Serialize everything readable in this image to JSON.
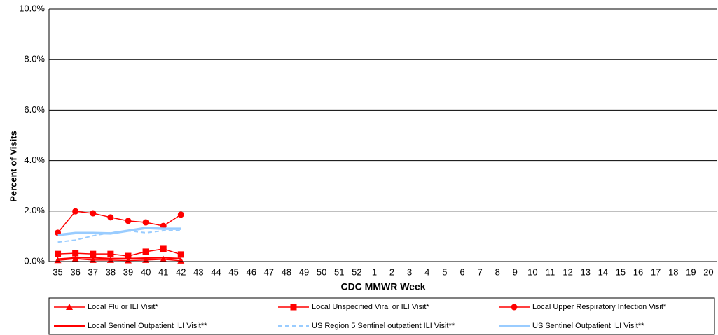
{
  "chart_data": {
    "type": "line",
    "y_label": "Percent of Visits",
    "x_label": "CDC MMWR Week",
    "categories": [
      "35",
      "36",
      "37",
      "38",
      "39",
      "40",
      "41",
      "42",
      "43",
      "44",
      "45",
      "46",
      "47",
      "48",
      "49",
      "50",
      "51",
      "52",
      "1",
      "2",
      "3",
      "4",
      "5",
      "6",
      "7",
      "8",
      "9",
      "10",
      "11",
      "12",
      "13",
      "14",
      "15",
      "16",
      "17",
      "18",
      "19",
      "20"
    ],
    "ylim": [
      0,
      10
    ],
    "yticks": [
      {
        "value": 0,
        "label": "0.0%"
      },
      {
        "value": 2,
        "label": "2.0%"
      },
      {
        "value": 4,
        "label": "4.0%"
      },
      {
        "value": 6,
        "label": "6.0%"
      },
      {
        "value": 8,
        "label": "8.0%"
      },
      {
        "value": 10,
        "label": "10.0%"
      }
    ],
    "grid": true,
    "legend": "bottom",
    "series": [
      {
        "name": "Local Flu or ILI Visit*",
        "color": "#ff0000",
        "marker": "triangle",
        "dash": false,
        "width": 1.5,
        "values": [
          0.05,
          0.11,
          0.06,
          0.06,
          0.04,
          0.06,
          0.09,
          0.03,
          null,
          null,
          null,
          null,
          null,
          null,
          null,
          null,
          null,
          null,
          null,
          null,
          null,
          null,
          null,
          null,
          null,
          null,
          null,
          null,
          null,
          null,
          null,
          null,
          null,
          null,
          null,
          null,
          null,
          null
        ]
      },
      {
        "name": "Local Unspecified Viral or ILI Visit*",
        "color": "#ff0000",
        "marker": "square",
        "dash": false,
        "width": 1.5,
        "values": [
          0.3,
          0.33,
          0.3,
          0.3,
          0.22,
          0.39,
          0.5,
          0.28,
          null,
          null,
          null,
          null,
          null,
          null,
          null,
          null,
          null,
          null,
          null,
          null,
          null,
          null,
          null,
          null,
          null,
          null,
          null,
          null,
          null,
          null,
          null,
          null,
          null,
          null,
          null,
          null,
          null,
          null
        ]
      },
      {
        "name": "Local Upper Respiratory Infection Visit*",
        "color": "#ff0000",
        "marker": "circle",
        "dash": false,
        "width": 1.5,
        "values": [
          1.14,
          1.99,
          1.91,
          1.75,
          1.61,
          1.55,
          1.41,
          1.86,
          null,
          null,
          null,
          null,
          null,
          null,
          null,
          null,
          null,
          null,
          null,
          null,
          null,
          null,
          null,
          null,
          null,
          null,
          null,
          null,
          null,
          null,
          null,
          null,
          null,
          null,
          null,
          null,
          null,
          null
        ]
      },
      {
        "name": "Local Sentinel Outpatient ILI Visit**",
        "color": "#ff0000",
        "marker": null,
        "dash": false,
        "width": 2,
        "values": [
          0.1,
          0.15,
          0.15,
          0.12,
          0.12,
          0.14,
          0.15,
          0.12,
          null,
          null,
          null,
          null,
          null,
          null,
          null,
          null,
          null,
          null,
          null,
          null,
          null,
          null,
          null,
          null,
          null,
          null,
          null,
          null,
          null,
          null,
          null,
          null,
          null,
          null,
          null,
          null,
          null,
          null
        ]
      },
      {
        "name": "US Region 5 Sentinel outpatient ILI Visit**",
        "color": "#99ccff",
        "marker": null,
        "dash": true,
        "width": 2,
        "values": [
          0.77,
          0.85,
          1.02,
          1.14,
          1.22,
          1.14,
          1.22,
          1.22,
          null,
          null,
          null,
          null,
          null,
          null,
          null,
          null,
          null,
          null,
          null,
          null,
          null,
          null,
          null,
          null,
          null,
          null,
          null,
          null,
          null,
          null,
          null,
          null,
          null,
          null,
          null,
          null,
          null,
          null
        ]
      },
      {
        "name": "US Sentinel Outpatient ILI Visit**",
        "color": "#99ccff",
        "marker": null,
        "dash": false,
        "width": 3.5,
        "values": [
          1.05,
          1.13,
          1.13,
          1.11,
          1.22,
          1.33,
          1.3,
          1.3,
          null,
          null,
          null,
          null,
          null,
          null,
          null,
          null,
          null,
          null,
          null,
          null,
          null,
          null,
          null,
          null,
          null,
          null,
          null,
          null,
          null,
          null,
          null,
          null,
          null,
          null,
          null,
          null,
          null,
          null
        ]
      }
    ]
  }
}
